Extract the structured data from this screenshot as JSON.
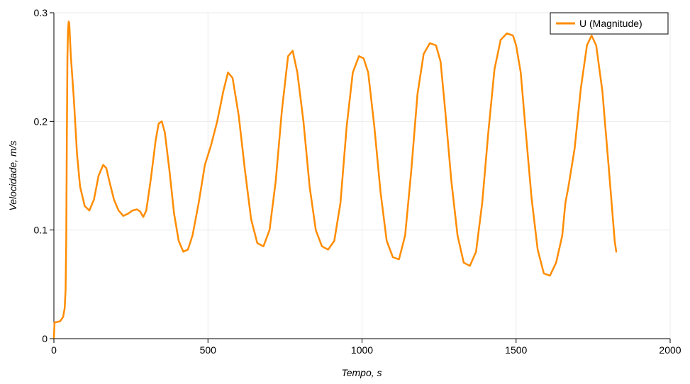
{
  "chart_data": {
    "type": "line",
    "xlabel": "Tempo, s",
    "ylabel": "Velocidade, m/s",
    "xlim": [
      0,
      2000
    ],
    "ylim": [
      0,
      0.3
    ],
    "x_ticks": [
      0,
      500,
      1000,
      1500,
      2000
    ],
    "y_ticks": [
      0,
      0.1,
      0.2,
      0.3
    ],
    "x_tick_labels": [
      "0",
      "500",
      "1000",
      "1500",
      "2000"
    ],
    "y_tick_labels": [
      "0",
      "0.1",
      "0.2",
      "0.3"
    ],
    "grid": true,
    "legend_position": "top-right",
    "series": [
      {
        "name": "U (Magnitude)",
        "color": "#ff8c00",
        "x": [
          0,
          2,
          5,
          20,
          30,
          35,
          38,
          40,
          42,
          44,
          46,
          48,
          50,
          55,
          65,
          75,
          85,
          100,
          115,
          130,
          145,
          160,
          170,
          180,
          195,
          210,
          225,
          240,
          255,
          270,
          280,
          290,
          300,
          315,
          330,
          340,
          350,
          360,
          375,
          390,
          405,
          420,
          435,
          450,
          470,
          490,
          510,
          530,
          550,
          565,
          580,
          600,
          620,
          640,
          660,
          680,
          700,
          720,
          740,
          760,
          775,
          790,
          810,
          830,
          850,
          870,
          890,
          910,
          930,
          950,
          970,
          990,
          1005,
          1020,
          1040,
          1060,
          1080,
          1100,
          1120,
          1140,
          1160,
          1180,
          1200,
          1220,
          1240,
          1255,
          1270,
          1290,
          1310,
          1330,
          1350,
          1370,
          1390,
          1410,
          1430,
          1450,
          1470,
          1490,
          1500,
          1515,
          1530,
          1550,
          1570,
          1590,
          1610,
          1630,
          1650,
          1660,
          1670,
          1690,
          1710,
          1730,
          1745,
          1760,
          1780,
          1800,
          1820,
          1825
        ],
        "y": [
          0.001,
          0.015,
          0.015,
          0.016,
          0.02,
          0.028,
          0.045,
          0.09,
          0.18,
          0.26,
          0.285,
          0.292,
          0.29,
          0.26,
          0.22,
          0.17,
          0.14,
          0.122,
          0.118,
          0.128,
          0.15,
          0.16,
          0.157,
          0.145,
          0.128,
          0.118,
          0.113,
          0.115,
          0.118,
          0.119,
          0.117,
          0.112,
          0.118,
          0.148,
          0.182,
          0.198,
          0.2,
          0.19,
          0.155,
          0.115,
          0.09,
          0.08,
          0.082,
          0.095,
          0.125,
          0.16,
          0.178,
          0.2,
          0.228,
          0.245,
          0.24,
          0.205,
          0.155,
          0.11,
          0.088,
          0.085,
          0.1,
          0.145,
          0.21,
          0.26,
          0.265,
          0.245,
          0.2,
          0.14,
          0.1,
          0.085,
          0.082,
          0.09,
          0.125,
          0.195,
          0.245,
          0.26,
          0.258,
          0.245,
          0.195,
          0.135,
          0.09,
          0.075,
          0.073,
          0.095,
          0.155,
          0.225,
          0.262,
          0.272,
          0.27,
          0.255,
          0.21,
          0.145,
          0.095,
          0.07,
          0.067,
          0.08,
          0.125,
          0.19,
          0.248,
          0.275,
          0.281,
          0.279,
          0.27,
          0.245,
          0.195,
          0.13,
          0.082,
          0.06,
          0.058,
          0.07,
          0.095,
          0.125,
          0.14,
          0.175,
          0.23,
          0.27,
          0.279,
          0.27,
          0.228,
          0.16,
          0.09,
          0.08
        ]
      }
    ]
  }
}
